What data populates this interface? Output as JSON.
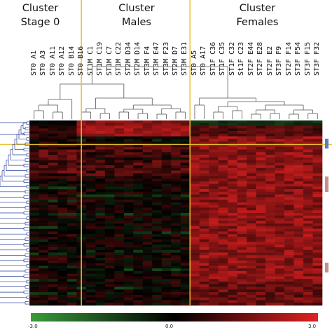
{
  "clusters": [
    {
      "title_line1": "Cluster",
      "title_line2": "Stage 0"
    },
    {
      "title_line1": "Cluster",
      "title_line2": "Males"
    },
    {
      "title_line1": "Cluster",
      "title_line2": "Females"
    }
  ],
  "column_labels": [
    "ST0 A1",
    "ST0 A3",
    "ST0 A11",
    "ST0 A12",
    "ST0 B14",
    "ST0 B16",
    "ST1M C1",
    "ST1M C19",
    "ST1M C7",
    "ST1M C22",
    "ST2M D34",
    "ST2M D14",
    "ST3M F4",
    "ST3M E47",
    "ST3M F23",
    "ST2M D7",
    "ST3M E31",
    "ST0 A5",
    "ST0 A17",
    "ST1F C36",
    "ST1F C35",
    "ST1F C32",
    "St1F C23",
    "ST2F E44",
    "ST2F E28",
    "ST2F E2",
    "ST3F F9",
    "ST2F F14",
    "ST3F F54",
    "ST3F F15",
    "ST3F F32"
  ],
  "cluster_sizes": [
    5,
    12,
    14
  ],
  "color_scale": {
    "min_label": "-3.0",
    "mid_label": "0.0",
    "max_label": "3.0",
    "low_color": "#3a9a3a",
    "mid_color": "#000000",
    "high_color": "#e02020"
  },
  "divider_color": "#e8c030"
}
